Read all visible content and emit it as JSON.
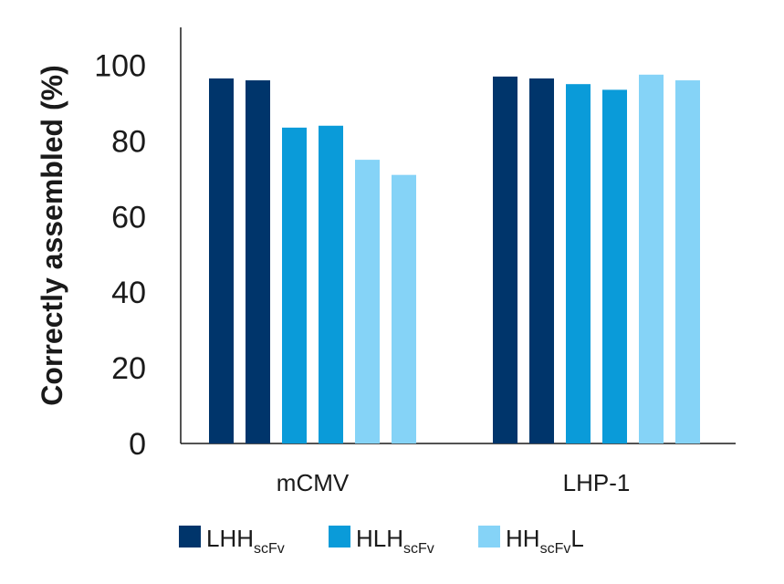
{
  "chart_data": {
    "type": "bar",
    "ylabel": "Correctly assembled (%)",
    "ylim": [
      0,
      110
    ],
    "yticks": [
      "0",
      "20",
      "40",
      "60",
      "80",
      "100"
    ],
    "grid": false,
    "legend_position": "bottom",
    "categories": [
      "mCMV",
      "LHP-1"
    ],
    "series": [
      {
        "name": "LHH",
        "name_sub": "scFv",
        "name_suffix": "",
        "color": "#00356b",
        "values": [
          96.5,
          97
        ]
      },
      {
        "name": "LHH",
        "name_sub": "scFv",
        "name_suffix": "",
        "color": "#00356b",
        "values": [
          96,
          96.5
        ]
      },
      {
        "name": "HLH",
        "name_sub": "scFv",
        "name_suffix": "",
        "color": "#0a9bd9",
        "values": [
          83.5,
          95
        ]
      },
      {
        "name": "HLH",
        "name_sub": "scFv",
        "name_suffix": "",
        "color": "#0a9bd9",
        "values": [
          84,
          93.5
        ]
      },
      {
        "name": "HH",
        "name_sub": "scFv",
        "name_suffix": "L",
        "color": "#85d3f7",
        "values": [
          75,
          97.5
        ]
      },
      {
        "name": "HH",
        "name_sub": "scFv",
        "name_suffix": "L",
        "color": "#85d3f7",
        "values": [
          71,
          96
        ]
      }
    ],
    "legend": [
      {
        "name": "LHH",
        "sub": "scFv",
        "suffix": "",
        "color": "#00356b"
      },
      {
        "name": "HLH",
        "sub": "scFv",
        "suffix": "",
        "color": "#0a9bd9"
      },
      {
        "name": "HH",
        "sub": "scFv",
        "suffix": "L",
        "color": "#85d3f7"
      }
    ]
  }
}
